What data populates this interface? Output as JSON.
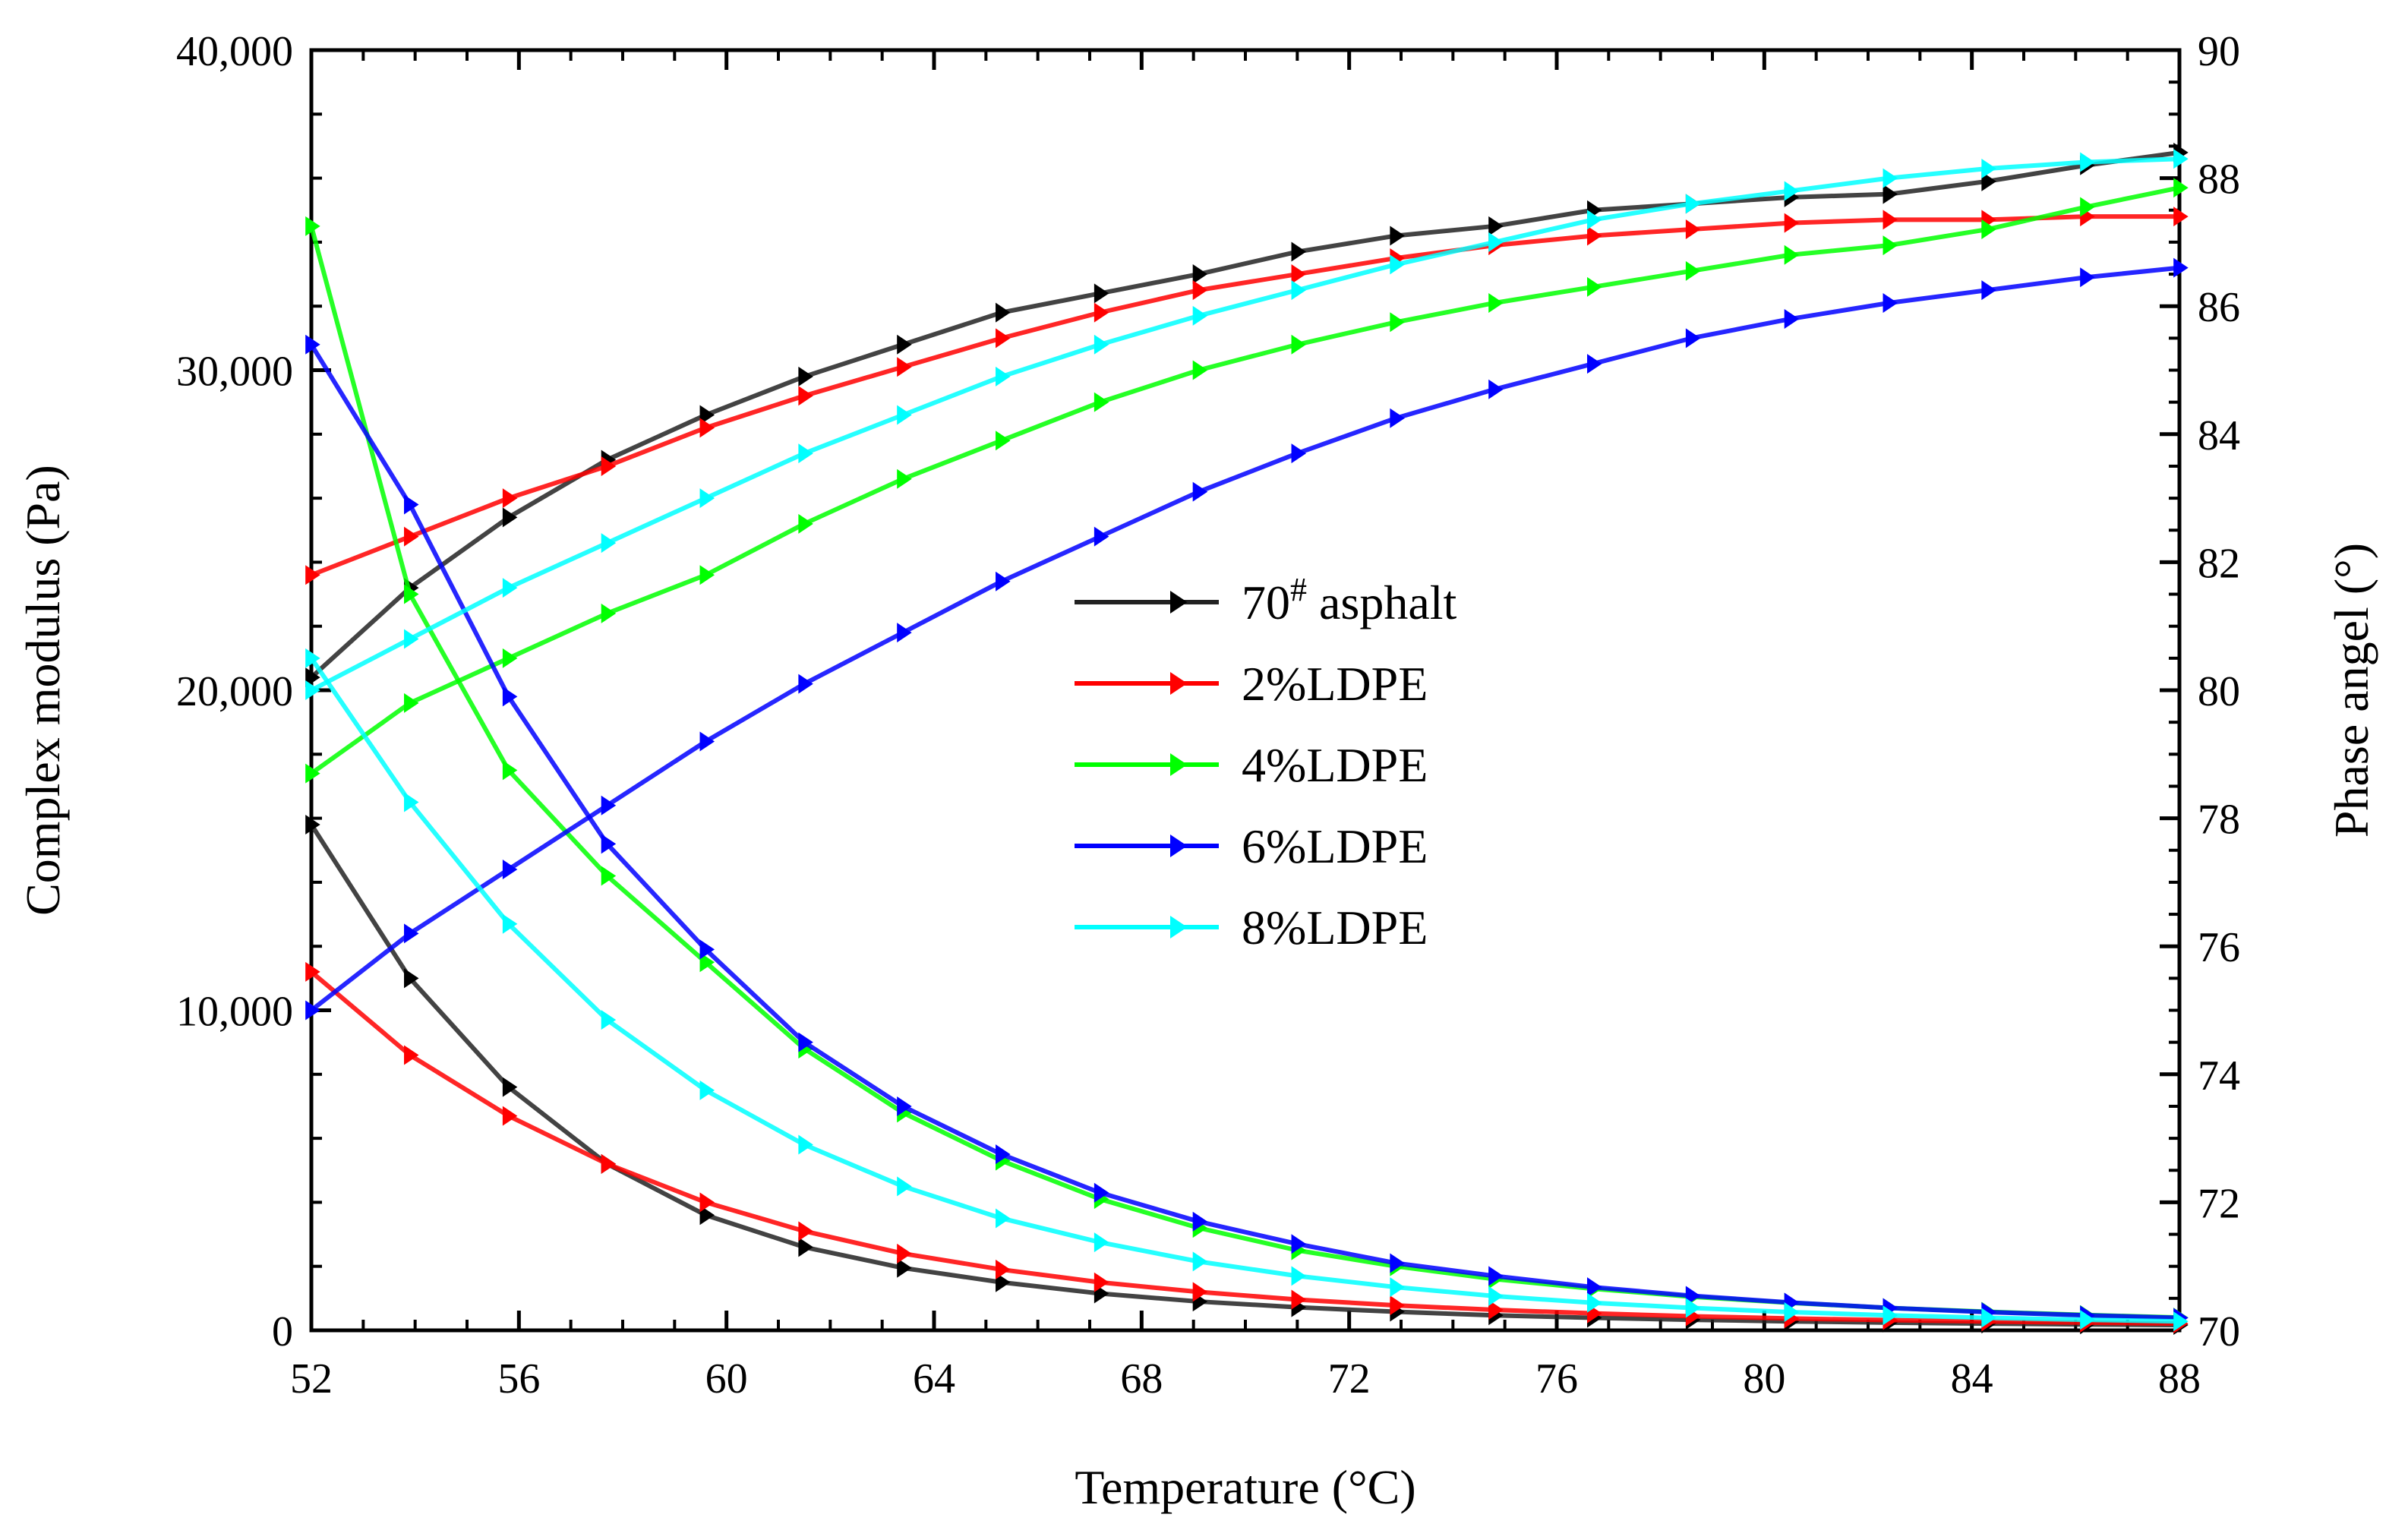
{
  "chart_data": {
    "type": "line",
    "title": "",
    "xlabel": "Temperature (°C)",
    "ylabel_left": "Complex modulus (Pa)",
    "ylabel_right": "Phase angel (°)",
    "xlim": [
      52,
      88
    ],
    "ylim_left": [
      0,
      40000
    ],
    "ylim_right": [
      70,
      90
    ],
    "xticks": [
      "52",
      "56",
      "60",
      "64",
      "68",
      "72",
      "76",
      "80",
      "84",
      "88"
    ],
    "yticks_left": [
      "0",
      "10,000",
      "20,000",
      "30,000",
      "40,000"
    ],
    "yticks_right": [
      "70",
      "72",
      "74",
      "76",
      "78",
      "80",
      "82",
      "84",
      "86",
      "88",
      "90"
    ],
    "grid": false,
    "legend_position": "center",
    "x": [
      52,
      53.9,
      55.8,
      57.7,
      59.6,
      61.5,
      63.4,
      65.3,
      67.2,
      69.1,
      71,
      72.9,
      74.8,
      76.7,
      78.6,
      80.5,
      82.4,
      84.3,
      86.2,
      88
    ],
    "series": [
      {
        "name": "70# asphalt",
        "label_main": "70",
        "label_sup": "#",
        "label_rest": " asphalt",
        "color": "#000000",
        "modulus": [
          15800,
          11000,
          7600,
          5200,
          3600,
          2600,
          1950,
          1500,
          1150,
          900,
          720,
          580,
          470,
          390,
          330,
          280,
          240,
          210,
          185,
          165
        ],
        "phase_angle": [
          80.2,
          81.6,
          82.7,
          83.6,
          84.3,
          84.9,
          85.4,
          85.9,
          86.2,
          86.5,
          86.85,
          87.1,
          87.25,
          87.5,
          87.6,
          87.7,
          87.75,
          87.95,
          88.2,
          88.4
        ]
      },
      {
        "name": "2%LDPE",
        "color": "#ff0000",
        "modulus": [
          11200,
          8600,
          6700,
          5200,
          4000,
          3100,
          2400,
          1900,
          1500,
          1200,
          960,
          780,
          640,
          530,
          440,
          370,
          320,
          275,
          240,
          210
        ],
        "phase_angle": [
          81.8,
          82.4,
          83.0,
          83.5,
          84.1,
          84.6,
          85.05,
          85.5,
          85.9,
          86.25,
          86.5,
          86.75,
          86.95,
          87.1,
          87.2,
          87.3,
          87.35,
          87.35,
          87.4,
          87.4
        ]
      },
      {
        "name": "4%LDPE",
        "color": "#00ff00",
        "modulus": [
          34500,
          23000,
          17500,
          14200,
          11500,
          8800,
          6800,
          5300,
          4100,
          3200,
          2500,
          2000,
          1600,
          1300,
          1050,
          860,
          700,
          580,
          480,
          400
        ],
        "phase_angle": [
          78.7,
          79.8,
          80.5,
          81.2,
          81.8,
          82.6,
          83.3,
          83.9,
          84.5,
          85.0,
          85.4,
          85.75,
          86.05,
          86.3,
          86.55,
          86.8,
          86.95,
          87.2,
          87.55,
          87.85
        ]
      },
      {
        "name": "6%LDPE",
        "color": "#0000ff",
        "modulus": [
          30800,
          25800,
          19800,
          15200,
          11900,
          9000,
          7000,
          5500,
          4300,
          3400,
          2700,
          2100,
          1700,
          1350,
          1080,
          870,
          700,
          570,
          470,
          390
        ],
        "phase_angle": [
          75.0,
          76.2,
          77.2,
          78.2,
          79.2,
          80.1,
          80.9,
          81.7,
          82.4,
          83.1,
          83.7,
          84.25,
          84.7,
          85.1,
          85.5,
          85.8,
          86.05,
          86.25,
          86.45,
          86.6
        ]
      },
      {
        "name": "8%LDPE",
        "color": "#00ffff",
        "modulus": [
          21000,
          16500,
          12700,
          9700,
          7500,
          5800,
          4500,
          3500,
          2750,
          2150,
          1700,
          1350,
          1070,
          860,
          700,
          570,
          470,
          390,
          330,
          280
        ],
        "phase_angle": [
          80.0,
          80.8,
          81.6,
          82.3,
          83.0,
          83.7,
          84.3,
          84.9,
          85.4,
          85.85,
          86.25,
          86.65,
          87.0,
          87.35,
          87.6,
          87.8,
          88.0,
          88.15,
          88.25,
          88.3
        ]
      }
    ]
  }
}
